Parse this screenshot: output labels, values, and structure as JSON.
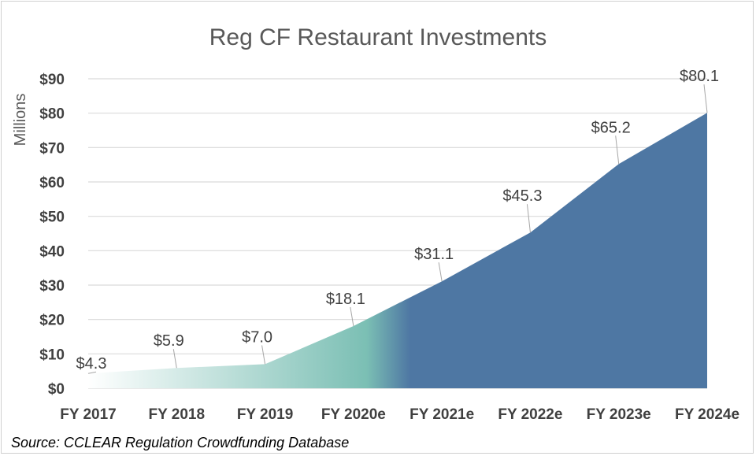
{
  "chart_data": {
    "type": "area",
    "title": "Reg CF Restaurant Investments",
    "ylabel": "Millions",
    "xlabel": "",
    "categories": [
      "FY 2017",
      "FY 2018",
      "FY 2019",
      "FY 2020e",
      "FY 2021e",
      "FY 2022e",
      "FY 2023e",
      "FY 2024e"
    ],
    "values": [
      4.3,
      5.9,
      7.0,
      18.1,
      31.1,
      45.3,
      65.2,
      80.1
    ],
    "data_labels": [
      "$4.3",
      "$5.9",
      "$7.0",
      "$18.1",
      "$31.1",
      "$45.3",
      "$65.2",
      "$80.1"
    ],
    "ylim": [
      0,
      90
    ],
    "yticks": [
      0,
      10,
      20,
      30,
      40,
      50,
      60,
      70,
      80,
      90
    ],
    "ytick_labels": [
      "$0",
      "$10",
      "$20",
      "$30",
      "$40",
      "$50",
      "$60",
      "$70",
      "$80",
      "$90"
    ],
    "grid": true,
    "legend": "none",
    "colors": {
      "fill_main": "#4e77a3",
      "fill_teal": "#7bbfb4",
      "fill_fade": "#ffffff",
      "grid": "#d9d9d9",
      "text": "#404040",
      "title": "#595959"
    }
  },
  "source": "Source: CCLEAR Regulation Crowdfunding Database"
}
